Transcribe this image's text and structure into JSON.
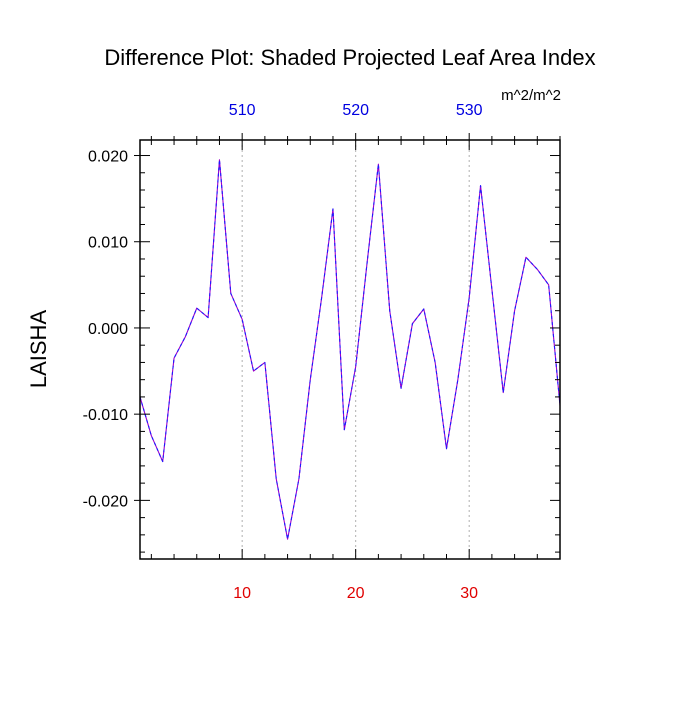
{
  "chart_data": {
    "type": "line",
    "title": "Difference Plot: Shaded Projected Leaf Area Index",
    "units": "m^2/m^2",
    "ylabel": "LAISHA",
    "xlabel": "",
    "xlim": [
      1,
      38
    ],
    "ylim": [
      -0.0268,
      0.0218
    ],
    "y_ticks": [
      -0.02,
      -0.01,
      0.0,
      0.01,
      0.02
    ],
    "y_tick_labels": [
      "-0.020",
      "-0.010",
      "0.000",
      "0.010",
      "0.020"
    ],
    "x_ticks_bottom": [
      10,
      20,
      30
    ],
    "x_tick_labels_bottom": [
      "10",
      "20",
      "30"
    ],
    "x_ticks_top": [
      10,
      20,
      30
    ],
    "x_tick_labels_top": [
      "510",
      "520",
      "530"
    ],
    "grid_x": [
      10,
      20,
      30
    ],
    "colors": {
      "line": "#9900cc",
      "line_dash": "#1a1aff",
      "bottom_ticks": "#e00000",
      "top_ticks": "#0000e0",
      "grid": "#b0b0b0"
    },
    "series": [
      {
        "name": "LAISHA difference",
        "x": [
          1,
          2,
          3,
          4,
          5,
          6,
          7,
          8,
          9,
          10,
          11,
          12,
          13,
          14,
          15,
          16,
          17,
          18,
          19,
          20,
          21,
          22,
          23,
          24,
          25,
          26,
          27,
          28,
          29,
          30,
          31,
          32,
          33,
          34,
          35,
          36,
          37,
          38
        ],
        "values": [
          -0.008,
          -0.0125,
          -0.0155,
          -0.0035,
          -0.001,
          0.0023,
          0.0012,
          0.0195,
          0.004,
          0.001,
          -0.005,
          -0.004,
          -0.0175,
          -0.0245,
          -0.0175,
          -0.006,
          0.0035,
          0.0138,
          -0.0118,
          -0.0045,
          0.0075,
          0.019,
          0.002,
          -0.007,
          0.0005,
          0.0022,
          -0.004,
          -0.014,
          -0.006,
          0.0035,
          0.0165,
          0.0045,
          -0.0075,
          0.002,
          0.0082,
          0.0068,
          0.005,
          -0.009
        ]
      }
    ]
  }
}
